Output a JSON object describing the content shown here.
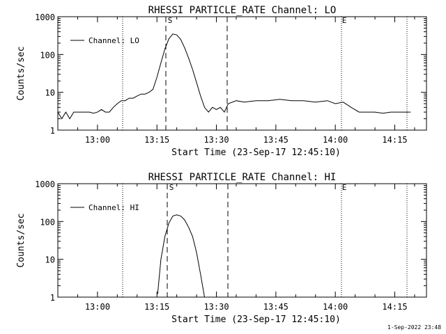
{
  "chart_data": [
    {
      "type": "line",
      "title": "RHESSI PARTICLE_RATE Channel: LO",
      "xlabel": "Start Time (23-Sep-17 12:45:10)",
      "ylabel": "Counts/sec",
      "yscale": "log",
      "ylim": [
        1,
        1000
      ],
      "xlim": [
        "12:50:00",
        "14:23:00"
      ],
      "xticks": [
        "13:00",
        "13:15",
        "13:30",
        "13:45",
        "14:00",
        "14:15"
      ],
      "yticks": [
        "1",
        "10",
        "100",
        "1000"
      ],
      "legend": {
        "label": "Channel: LO",
        "position": "top-left"
      },
      "markers": {
        "start": "S",
        "end": "E"
      },
      "series": [
        {
          "name": "Channel: LO",
          "x": [
            "12:50:00",
            "12:51:00",
            "12:52:00",
            "12:53:00",
            "12:54:00",
            "12:55:00",
            "12:56:00",
            "12:57:00",
            "12:58:00",
            "12:59:00",
            "13:00:00",
            "13:01:00",
            "13:02:00",
            "13:03:00",
            "13:04:00",
            "13:05:00",
            "13:06:00",
            "13:07:00",
            "13:08:00",
            "13:09:00",
            "13:10:00",
            "13:11:00",
            "13:12:00",
            "13:13:00",
            "13:14:00",
            "13:15:00",
            "13:16:00",
            "13:17:00",
            "13:18:00",
            "13:19:00",
            "13:20:00",
            "13:21:00",
            "13:22:00",
            "13:23:00",
            "13:24:00",
            "13:25:00",
            "13:26:00",
            "13:27:00",
            "13:28:00",
            "13:29:00",
            "13:30:00",
            "13:31:00",
            "13:32:00",
            "13:33:00",
            "13:35:00",
            "13:37:00",
            "13:40:00",
            "13:43:00",
            "13:46:00",
            "13:49:00",
            "13:52:00",
            "13:55:00",
            "13:58:00",
            "14:00:00",
            "14:02:00",
            "14:04:00",
            "14:06:00",
            "14:08:00",
            "14:10:00",
            "14:12:00",
            "14:14:00",
            "14:16:00",
            "14:18:00",
            "14:19:00"
          ],
          "y": [
            3,
            2,
            3,
            2,
            3,
            3,
            3,
            3,
            3,
            2.8,
            3,
            3.5,
            3,
            3,
            4,
            5,
            6,
            6,
            7,
            7,
            8,
            9,
            9,
            10,
            12,
            25,
            60,
            140,
            260,
            350,
            330,
            250,
            150,
            80,
            40,
            18,
            8,
            4,
            3,
            4,
            3.5,
            4,
            3,
            5,
            6,
            5.5,
            6,
            6,
            6.5,
            6,
            6,
            5.5,
            6,
            5,
            5.5,
            4,
            3,
            3,
            3,
            2.8,
            3,
            3,
            3,
            3
          ]
        }
      ]
    },
    {
      "type": "line",
      "title": "RHESSI PARTICLE_RATE Channel: HI",
      "xlabel": "Start Time (23-Sep-17 12:45:10)",
      "ylabel": "Counts/sec",
      "yscale": "log",
      "ylim": [
        1,
        1000
      ],
      "xlim": [
        "12:50:00",
        "14:23:00"
      ],
      "xticks": [
        "13:00",
        "13:15",
        "13:30",
        "13:45",
        "14:00",
        "14:15"
      ],
      "yticks": [
        "1",
        "10",
        "100",
        "1000"
      ],
      "legend": {
        "label": "Channel: HI",
        "position": "top-left"
      },
      "markers": {
        "start": "S",
        "end": "E"
      },
      "series": [
        {
          "name": "Channel: HI",
          "x": [
            "13:15:10",
            "13:16:00",
            "13:17:00",
            "13:18:00",
            "13:19:00",
            "13:20:00",
            "13:21:00",
            "13:22:00",
            "13:23:00",
            "13:24:00",
            "13:25:00",
            "13:26:00",
            "13:27:00"
          ],
          "y": [
            1.2,
            10,
            40,
            90,
            140,
            150,
            140,
            110,
            70,
            40,
            15,
            4,
            1
          ]
        }
      ]
    }
  ],
  "timestamp": "1-Sep-2022 23:48"
}
